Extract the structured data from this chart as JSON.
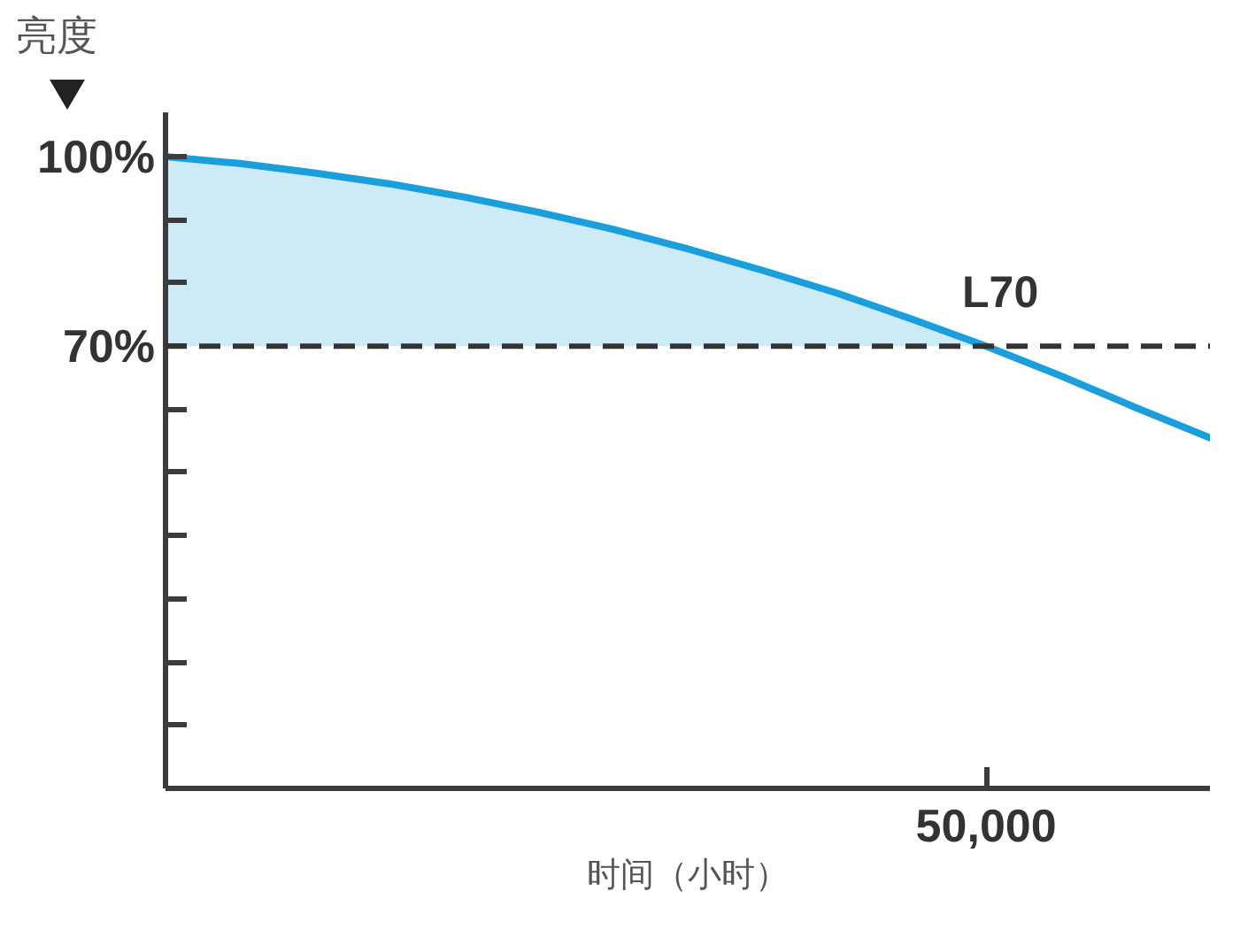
{
  "chart_data": {
    "type": "line",
    "xlabel": "时间（小时）",
    "ylabel": "亮度",
    "categories": [
      null,
      null,
      null,
      null,
      null,
      null,
      null,
      null,
      null,
      null,
      null,
      "50,000",
      null,
      null,
      null
    ],
    "ylim": [
      0,
      107
    ],
    "yticks": [
      {
        "value": 10,
        "label": null
      },
      {
        "value": 20,
        "label": null
      },
      {
        "value": 30,
        "label": null
      },
      {
        "value": 40,
        "label": null
      },
      {
        "value": 50,
        "label": null
      },
      {
        "value": 60,
        "label": null
      },
      {
        "value": 70,
        "label": "70%"
      },
      {
        "value": 80,
        "label": null
      },
      {
        "value": 90,
        "label": null
      },
      {
        "value": 100,
        "label": "100%"
      }
    ],
    "series": [
      {
        "color": "#1a9fdc",
        "values": [
          100,
          98.9,
          97.4,
          95.7,
          93.6,
          91.2,
          88.5,
          85.4,
          82.0,
          78.4,
          74.3,
          70,
          65.3,
          60.3,
          55.5
        ],
        "lower": [
          70,
          70,
          70,
          70,
          70,
          70,
          70,
          70,
          70,
          70,
          70,
          70,
          null,
          null,
          null
        ],
        "upper": [
          100,
          98.9,
          97.4,
          95.7,
          93.6,
          91.2,
          88.5,
          85.4,
          82.0,
          78.4,
          74.3,
          70,
          null,
          null,
          null
        ]
      }
    ],
    "ref_lines": [
      {
        "axis": "y",
        "value": 70,
        "color": "#333333",
        "line_style": "dashed"
      }
    ],
    "annotations": [
      {
        "text": "L70",
        "x": "50,000",
        "y": 70
      }
    ],
    "grid": false
  }
}
